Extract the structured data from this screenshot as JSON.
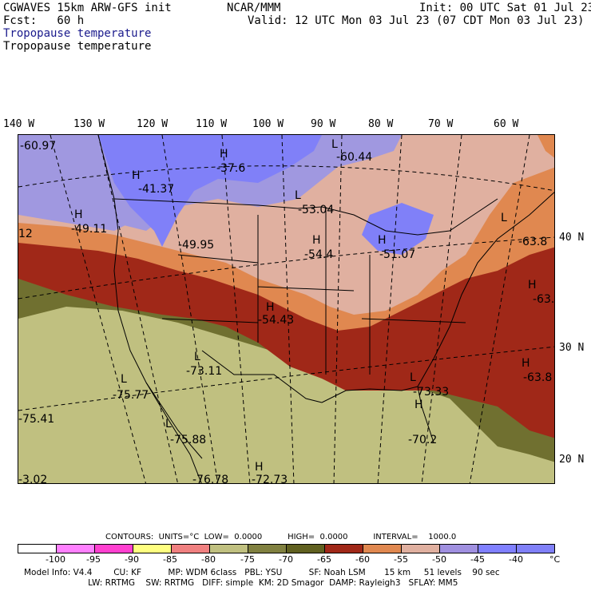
{
  "header": {
    "model": "CGWAVES 15km ARW-GFS init",
    "org": "NCAR/MMM",
    "init": "Init: 00 UTC Sat 01 Jul 23",
    "fcst": "Fcst:   60 h",
    "valid": "Valid: 12 UTC Mon 03 Jul 23 (07 CDT Mon 03 Jul 23)",
    "field_title_1": "Tropopause temperature",
    "field_title_2": "Tropopause temperature"
  },
  "longitude_labels": [
    "140 W",
    "130 W",
    "120 W",
    "110 W",
    "100 W",
    "90 W",
    "80 W",
    "70 W",
    "60 W"
  ],
  "latitude_labels": [
    "40 N",
    "30 N",
    "20 N"
  ],
  "map_labels": [
    {
      "text": "-60.97"
    },
    {
      "text": "H"
    },
    {
      "text": "-41.37"
    },
    {
      "text": "H"
    },
    {
      "text": "-37.6"
    },
    {
      "text": "L"
    },
    {
      "text": "-60.44"
    },
    {
      "text": "L"
    },
    {
      "text": "-53.04"
    },
    {
      "text": "H"
    },
    {
      "text": "-49.11"
    },
    {
      "text": "12"
    },
    {
      "text": "-49.95"
    },
    {
      "text": "H"
    },
    {
      "text": "-54.4"
    },
    {
      "text": "H"
    },
    {
      "text": "-51.07"
    },
    {
      "text": "L"
    },
    {
      "text": "-63.8"
    },
    {
      "text": "H"
    },
    {
      "text": "-63."
    },
    {
      "text": "H"
    },
    {
      "text": "-54.43"
    },
    {
      "text": "L"
    },
    {
      "text": "-73.11"
    },
    {
      "text": "H"
    },
    {
      "text": "-63.8"
    },
    {
      "text": "L"
    },
    {
      "text": "-75.77"
    },
    {
      "text": "L"
    },
    {
      "text": "-73.33"
    },
    {
      "text": "-75.41"
    },
    {
      "text": "L"
    },
    {
      "text": "-75.88"
    },
    {
      "text": "H"
    },
    {
      "text": "-70.2"
    },
    {
      "text": "H"
    },
    {
      "text": "-72.73"
    },
    {
      "text": "-76.78"
    },
    {
      "text": "-3.02"
    }
  ],
  "contours": {
    "line": "CONTOURS:  UNITS=°C  LOW=  0.0000          HIGH=  0.0000          INTERVAL=    1000.0"
  },
  "colorbar": {
    "colors": [
      "#ffffff",
      "#ff80ff",
      "#ff40d0",
      "#ffff80",
      "#f08080",
      "#c0c080",
      "#808040",
      "#606020",
      "#a02818",
      "#e08850",
      "#e0b0a0",
      "#a090e0",
      "#8080ff",
      "#8080f8"
    ],
    "ticks": [
      "-100",
      "-95",
      "-90",
      "-85",
      "-80",
      "-75",
      "-70",
      "-65",
      "-60",
      "-55",
      "-50",
      "-45",
      "-40",
      "°C"
    ]
  },
  "footer": {
    "line1": "Model Info: V4.4        CU: KF          MP: WDM 6class   PBL: YSU          SF: Noah LSM       15 km     51 levels    90 sec",
    "line2": "                        LW: RRTMG    SW: RRTMG   DIFF: simple  KM: 2D Smagor  DAMP: Rayleigh3   SFLAY: MM5"
  },
  "colors": {
    "cold_purple": "#8080f8",
    "light_purple": "#a098e0",
    "pink": "#e0b0a0",
    "orange": "#e08850",
    "dark_red": "#a02818",
    "olive_dark": "#707030",
    "olive_light": "#c0c080"
  }
}
